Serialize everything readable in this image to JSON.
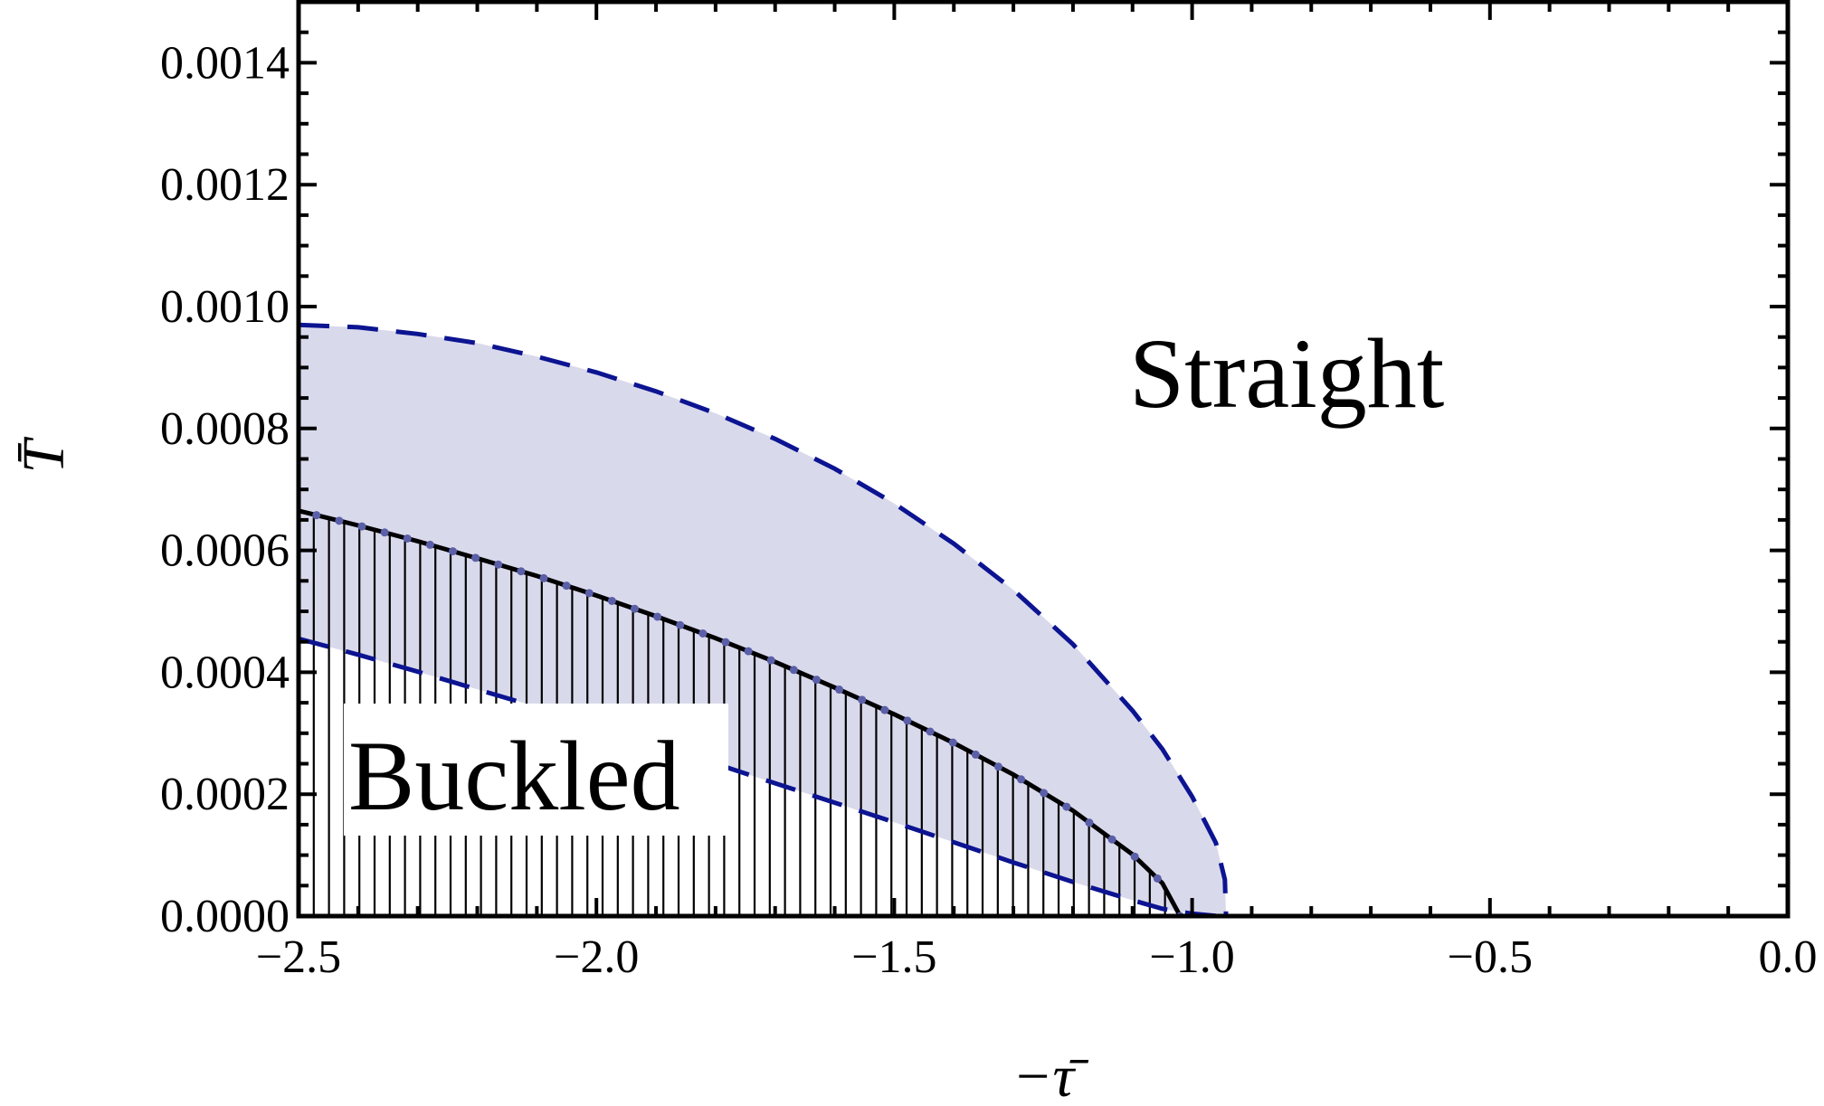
{
  "chart_data": {
    "type": "line",
    "xlabel": "−τ̄",
    "ylabel": "T̄",
    "xlim": [
      -2.5,
      0.0
    ],
    "ylim": [
      0.0,
      0.0015
    ],
    "x_ticks": [
      -2.5,
      -2.0,
      -1.5,
      -1.0,
      -0.5,
      0.0
    ],
    "x_tick_labels": [
      "−2.5",
      "−2.0",
      "−1.5",
      "−1.0",
      "−0.5",
      "0.0"
    ],
    "y_ticks": [
      0.0,
      0.0002,
      0.0004,
      0.0006,
      0.0008,
      0.001,
      0.0012,
      0.0014
    ],
    "y_tick_labels": [
      "0.0000",
      "0.0002",
      "0.0004",
      "0.0006",
      "0.0008",
      "0.0010",
      "0.0012",
      "0.0014"
    ],
    "grid": false,
    "region_labels": {
      "straight": "Straight",
      "buckled": "Buckled"
    },
    "colors": {
      "band_fill": "#d9d9ec",
      "dashed_line": "#0c1491",
      "boundary_line": "#000000",
      "boundary_dots": "#5a5fa8",
      "hatch": "#000000"
    },
    "series": [
      {
        "style": "dashed-upper",
        "x": [
          -2.5,
          -2.4,
          -2.3,
          -2.2,
          -2.1,
          -2.0,
          -1.9,
          -1.8,
          -1.7,
          -1.6,
          -1.5,
          -1.4,
          -1.3,
          -1.2,
          -1.1,
          -1.05,
          -1.0,
          -0.96,
          -0.945,
          -0.943
        ],
        "y": [
          0.00097,
          0.000966,
          0.000955,
          0.00094,
          0.000918,
          0.000892,
          0.000861,
          0.000825,
          0.000783,
          0.000734,
          0.000677,
          0.000611,
          0.000535,
          0.000446,
          0.000337,
          0.000274,
          0.000196,
          0.00012,
          6e-05,
          0.0
        ]
      },
      {
        "style": "dashed-lower",
        "x": [
          -2.5,
          -2.4,
          -2.3,
          -2.2,
          -2.1,
          -2.0,
          -1.9,
          -1.8,
          -1.7,
          -1.6,
          -1.5,
          -1.4,
          -1.3,
          -1.2,
          -1.1,
          -1.05,
          -1.0,
          -0.96,
          -0.945,
          -0.943
        ],
        "y": [
          0.000455,
          0.000429,
          0.000401,
          0.000372,
          0.000343,
          0.000312,
          0.000282,
          0.00025,
          0.000218,
          0.000186,
          0.000154,
          0.000121,
          8.8e-05,
          5.6e-05,
          2.6e-05,
          1.2e-05,
          4e-06,
          5e-07,
          5e-08,
          0.0
        ]
      },
      {
        "style": "solid-boundary",
        "x": [
          -2.5,
          -2.4,
          -2.3,
          -2.2,
          -2.1,
          -2.0,
          -1.9,
          -1.8,
          -1.7,
          -1.6,
          -1.5,
          -1.4,
          -1.3,
          -1.2,
          -1.1,
          -1.05,
          -1.02
        ],
        "y": [
          0.000665,
          0.000641,
          0.000615,
          0.000587,
          0.000558,
          0.000526,
          0.000492,
          0.000456,
          0.000417,
          0.000375,
          0.000331,
          0.000284,
          0.000232,
          0.000173,
          0.000101,
          5.4e-05,
          0.0
        ]
      }
    ]
  }
}
